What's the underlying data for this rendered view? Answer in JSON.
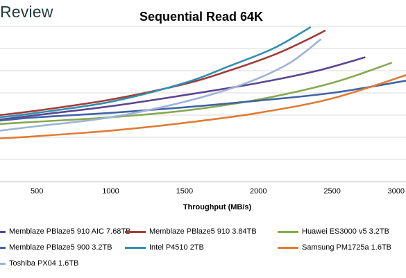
{
  "brand": {
    "logo_text": "Review"
  },
  "chart_data": {
    "type": "line",
    "title": "Sequential Read 64K",
    "xlabel": "Throughput (MB/s)",
    "ylabel": "",
    "xlim": [
      250,
      3000
    ],
    "ylim": [
      0,
      14
    ],
    "x_ticks": [
      "500",
      "1000",
      "1500",
      "2000",
      "2500",
      "3000"
    ],
    "grid": "horizontal",
    "legend_position": "bottom",
    "series": [
      {
        "name": "Memblaze PBlaze5 910 AIC 7.68TB",
        "color": "#5b4690",
        "x": [
          250,
          500,
          1000,
          1500,
          2000,
          2400,
          2720
        ],
        "y": [
          5.6,
          6.0,
          6.8,
          7.8,
          8.9,
          10.0,
          11.2
        ]
      },
      {
        "name": "Memblaze PBlaze5 910 3.84TB",
        "color": "#a23c3a",
        "x": [
          250,
          500,
          1000,
          1500,
          1800,
          2100,
          2300,
          2450
        ],
        "y": [
          6.0,
          6.4,
          7.4,
          8.8,
          10.0,
          11.4,
          12.6,
          13.6
        ]
      },
      {
        "name": "Huawei ES3000 v5 3.2TB",
        "color": "#86a94e",
        "x": [
          250,
          500,
          1000,
          1500,
          2000,
          2500,
          2900
        ],
        "y": [
          5.2,
          5.4,
          5.8,
          6.4,
          7.4,
          8.9,
          10.7
        ]
      },
      {
        "name": "Memblaze PBlaze5 900 3.2TB",
        "color": "#3f63a4",
        "x": [
          250,
          500,
          1000,
          1500,
          2000,
          2500,
          3000
        ],
        "y": [
          5.5,
          5.8,
          6.2,
          6.7,
          7.3,
          8.0,
          9.1
        ]
      },
      {
        "name": "Intel P4510 2TB",
        "color": "#2f8faf",
        "x": [
          250,
          500,
          1000,
          1500,
          1800,
          2100,
          2350
        ],
        "y": [
          5.8,
          6.2,
          7.2,
          8.9,
          10.4,
          12.0,
          13.9
        ]
      },
      {
        "name": "Samsung PM1725a 1.6TB",
        "color": "#e07b34",
        "x": [
          250,
          500,
          1000,
          1500,
          2000,
          2500,
          3000
        ],
        "y": [
          3.9,
          4.1,
          4.6,
          5.3,
          6.2,
          7.5,
          9.6
        ]
      },
      {
        "name": "Toshiba PX04 1.6TB",
        "color": "#9db3d8",
        "x": [
          250,
          500,
          1000,
          1500,
          1900,
          2200,
          2420
        ],
        "y": [
          4.6,
          5.0,
          5.8,
          7.2,
          8.8,
          10.6,
          12.8
        ]
      }
    ]
  }
}
